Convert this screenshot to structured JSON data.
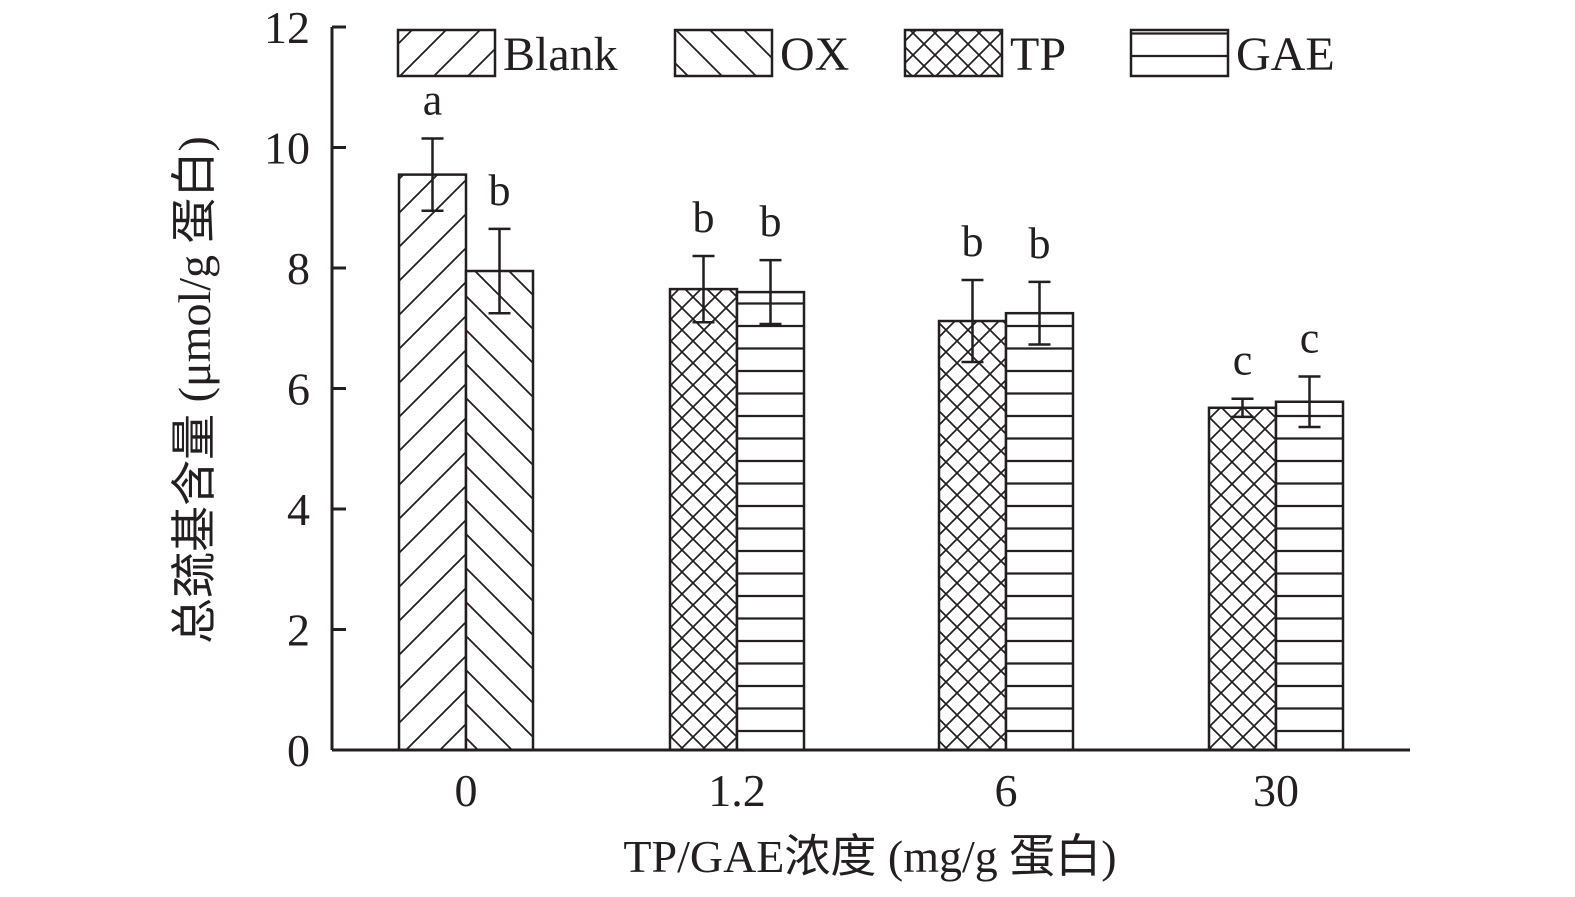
{
  "chart_data": {
    "type": "bar",
    "xlabel": "TP/GAE浓度 (mg/g 蛋白)",
    "ylabel": "总巯基含量 (μmol/g 蛋白)",
    "ylim": [
      0,
      12
    ],
    "yticks": [
      0,
      2,
      4,
      6,
      8,
      10,
      12
    ],
    "categories": [
      "0",
      "1.2",
      "6",
      "30"
    ],
    "legend": [
      "Blank",
      "OX",
      "TP",
      "GAE"
    ],
    "legend_position": "top",
    "grid": false,
    "bars": [
      {
        "category": "0",
        "series": "Blank",
        "pattern": "diag-right",
        "value": 9.55,
        "error": 0.6,
        "label": "a"
      },
      {
        "category": "0",
        "series": "OX",
        "pattern": "diag-left",
        "value": 7.95,
        "error": 0.7,
        "label": "b"
      },
      {
        "category": "1.2",
        "series": "TP",
        "pattern": "crosshatch",
        "value": 7.65,
        "error": 0.55,
        "label": "b"
      },
      {
        "category": "1.2",
        "series": "GAE",
        "pattern": "horizontal",
        "value": 7.6,
        "error": 0.53,
        "label": "b"
      },
      {
        "category": "6",
        "series": "TP",
        "pattern": "crosshatch",
        "value": 7.12,
        "error": 0.68,
        "label": "b"
      },
      {
        "category": "6",
        "series": "GAE",
        "pattern": "horizontal",
        "value": 7.25,
        "error": 0.52,
        "label": "b"
      },
      {
        "category": "30",
        "series": "TP",
        "pattern": "crosshatch",
        "value": 5.68,
        "error": 0.15,
        "label": "c"
      },
      {
        "category": "30",
        "series": "GAE",
        "pattern": "horizontal",
        "value": 5.78,
        "error": 0.42,
        "label": "c"
      }
    ],
    "colors": {
      "stroke": "#231f20",
      "fill": "#ffffff"
    }
  }
}
